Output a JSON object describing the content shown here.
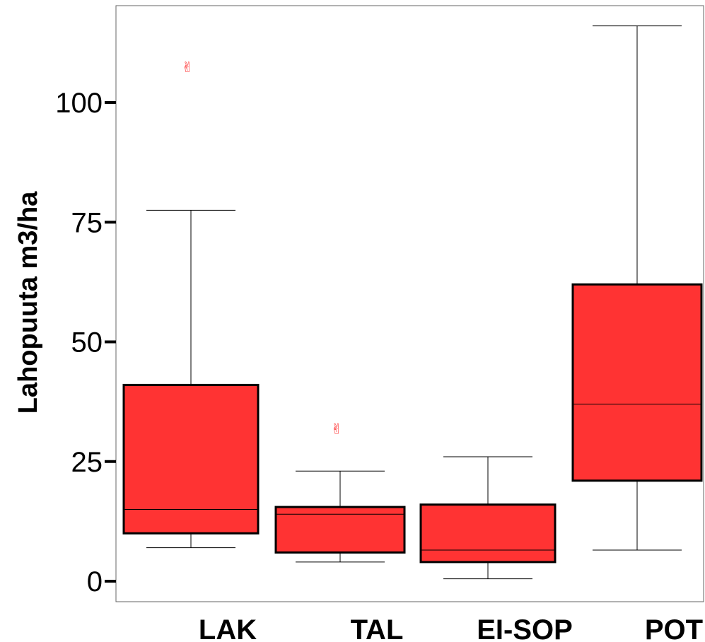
{
  "chart_data": {
    "type": "box",
    "ylabel": "Lahopuuta m3/ha",
    "xlabel": "",
    "ylim": [
      -4,
      121
    ],
    "yticks": [
      0,
      25,
      50,
      75,
      100
    ],
    "categories": [
      "LAK",
      "TAL",
      "EI-SOP",
      "POT"
    ],
    "boxes": [
      {
        "name": "LAK",
        "min": 7,
        "q1": 10,
        "median": 15,
        "q3": 41,
        "max": 77.5,
        "outliers": [
          107.5
        ]
      },
      {
        "name": "TAL",
        "min": 4,
        "q1": 6,
        "median": 14,
        "q3": 15.5,
        "max": 23,
        "outliers": [
          32
        ]
      },
      {
        "name": "EI-SOP",
        "min": 0.5,
        "q1": 4,
        "median": 6.5,
        "q3": 16,
        "max": 26,
        "outliers": []
      },
      {
        "name": "POT",
        "min": 6.5,
        "q1": 21,
        "median": 37,
        "q3": 62,
        "max": 116,
        "outliers": []
      }
    ],
    "box_color": "#ff3333",
    "outlier_color": "#ff3333",
    "outlier_symbol": "✌",
    "grid": false
  }
}
